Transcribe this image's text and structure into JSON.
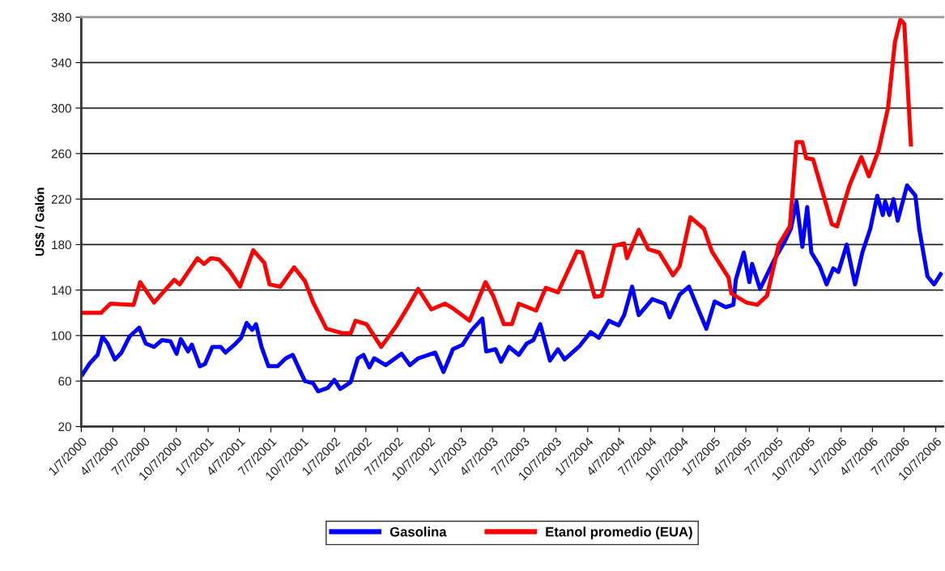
{
  "chart_data": {
    "type": "line",
    "ylabel": "US$ / Galón",
    "ylim": [
      20,
      380
    ],
    "yticks": [
      20,
      60,
      100,
      140,
      180,
      220,
      260,
      300,
      340,
      380
    ],
    "xlim": [
      "2000-01-07",
      "2006-10-28"
    ],
    "xticks": [
      {
        "value": "2000-01-07",
        "label": "1/7/2000"
      },
      {
        "value": "2000-04-07",
        "label": "4/7/2000"
      },
      {
        "value": "2000-07-07",
        "label": "7/7/2000"
      },
      {
        "value": "2000-10-07",
        "label": "10/7/2000"
      },
      {
        "value": "2001-01-07",
        "label": "1/7/2001"
      },
      {
        "value": "2001-04-07",
        "label": "4/7/2001"
      },
      {
        "value": "2001-07-07",
        "label": "7/7/2001"
      },
      {
        "value": "2001-10-07",
        "label": "10/7/2001"
      },
      {
        "value": "2002-01-07",
        "label": "1/7/2002"
      },
      {
        "value": "2002-04-07",
        "label": "4/7/2002"
      },
      {
        "value": "2002-07-07",
        "label": "7/7/2002"
      },
      {
        "value": "2002-10-07",
        "label": "10/7/2002"
      },
      {
        "value": "2003-01-07",
        "label": "1/7/2003"
      },
      {
        "value": "2003-04-07",
        "label": "4/7/2003"
      },
      {
        "value": "2003-07-07",
        "label": "7/7/2003"
      },
      {
        "value": "2003-10-07",
        "label": "10/7/2003"
      },
      {
        "value": "2004-01-07",
        "label": "1/7/2004"
      },
      {
        "value": "2004-04-07",
        "label": "4/7/2004"
      },
      {
        "value": "2004-07-07",
        "label": "7/7/2004"
      },
      {
        "value": "2004-10-07",
        "label": "10/7/2004"
      },
      {
        "value": "2005-01-07",
        "label": "1/7/2005"
      },
      {
        "value": "2005-04-07",
        "label": "4/7/2005"
      },
      {
        "value": "2005-07-07",
        "label": "7/7/2005"
      },
      {
        "value": "2005-10-07",
        "label": "10/7/2005"
      },
      {
        "value": "2006-01-07",
        "label": "1/7/2006"
      },
      {
        "value": "2006-04-07",
        "label": "4/7/2006"
      },
      {
        "value": "2006-07-07",
        "label": "7/7/2006"
      },
      {
        "value": "2006-10-07",
        "label": "10/7/2006"
      }
    ],
    "grid": "y",
    "legend": "bottom",
    "marker": "none",
    "line_style": "solid",
    "series": [
      {
        "name": "Gasolina",
        "color": "#0000ff",
        "x": [
          "2000-01-11",
          "2000-01-30",
          "2000-02-23",
          "2000-03-08",
          "2000-03-23",
          "2000-04-13",
          "2000-05-02",
          "2000-05-25",
          "2000-06-22",
          "2000-07-11",
          "2000-08-04",
          "2000-08-27",
          "2000-09-20",
          "2000-10-08",
          "2000-10-20",
          "2000-11-10",
          "2000-11-21",
          "2000-12-14",
          "2000-12-29",
          "2001-01-19",
          "2001-02-12",
          "2001-02-26",
          "2001-03-24",
          "2001-04-12",
          "2001-04-28",
          "2001-05-14",
          "2001-05-25",
          "2001-06-10",
          "2001-06-30",
          "2001-07-26",
          "2001-08-19",
          "2001-09-08",
          "2001-09-23",
          "2001-10-13",
          "2001-11-06",
          "2001-11-20",
          "2001-12-18",
          "2002-01-06",
          "2002-01-23",
          "2002-02-22",
          "2002-03-15",
          "2002-03-31",
          "2002-04-17",
          "2002-05-01",
          "2002-06-03",
          "2002-07-19",
          "2002-08-12",
          "2002-09-05",
          "2002-10-24",
          "2002-11-17",
          "2002-12-14",
          "2003-01-11",
          "2003-02-07",
          "2003-03-09",
          "2003-03-20",
          "2003-04-16",
          "2003-05-02",
          "2003-05-25",
          "2003-06-22",
          "2003-07-15",
          "2003-08-03",
          "2003-08-23",
          "2003-09-20",
          "2003-10-13",
          "2003-11-01",
          "2003-12-15",
          "2004-01-15",
          "2004-02-08",
          "2004-03-08",
          "2004-04-05",
          "2004-04-21",
          "2004-05-14",
          "2004-06-02",
          "2004-07-11",
          "2004-08-16",
          "2004-08-30",
          "2004-09-28",
          "2004-10-25",
          "2004-11-14",
          "2004-12-14",
          "2005-01-07",
          "2005-02-08",
          "2005-03-02",
          "2005-03-09",
          "2005-04-01",
          "2005-04-17",
          "2005-04-25",
          "2005-05-18",
          "2005-06-11",
          "2005-06-27",
          "2005-07-27",
          "2005-08-15",
          "2005-08-31",
          "2005-09-17",
          "2005-10-01",
          "2005-10-13",
          "2005-11-06",
          "2005-11-26",
          "2005-12-15",
          "2005-12-30",
          "2006-01-23",
          "2006-02-16",
          "2006-03-09",
          "2006-04-01",
          "2006-04-21",
          "2006-05-07",
          "2006-05-14",
          "2006-05-26",
          "2006-06-07",
          "2006-06-19",
          "2006-07-16",
          "2006-08-09",
          "2006-08-20",
          "2006-09-13",
          "2006-10-02",
          "2006-10-21"
        ],
        "values": [
          66,
          75,
          83,
          99,
          93,
          79,
          85,
          99,
          107,
          93,
          90,
          96,
          95,
          84,
          97,
          86,
          92,
          73,
          75,
          90,
          90,
          85,
          92,
          98,
          111,
          105,
          110,
          90,
          73,
          73,
          80,
          83,
          73,
          60,
          58,
          51,
          54,
          61,
          53,
          59,
          80,
          83,
          72,
          80,
          74,
          84,
          74,
          80,
          85,
          68,
          88,
          92,
          105,
          115,
          86,
          88,
          77,
          90,
          83,
          93,
          96,
          110,
          78,
          88,
          79,
          91,
          103,
          98,
          113,
          109,
          118,
          143,
          118,
          132,
          128,
          116,
          136,
          143,
          128,
          106,
          130,
          125,
          127,
          149,
          173,
          147,
          163,
          141,
          156,
          166,
          182,
          194,
          218,
          178,
          213,
          173,
          161,
          145,
          159,
          156,
          180,
          145,
          173,
          194,
          223,
          206,
          218,
          206,
          220,
          201,
          232,
          223,
          194,
          152,
          145,
          154
        ]
      },
      {
        "name": "Etanol promedio (EUA)",
        "color": "#ff0000",
        "x": [
          "2000-01-11",
          "2000-03-04",
          "2000-03-31",
          "2000-06-06",
          "2000-06-25",
          "2000-08-04",
          "2000-08-27",
          "2000-10-01",
          "2000-10-17",
          "2000-12-07",
          "2000-12-26",
          "2001-01-15",
          "2001-02-07",
          "2001-03-09",
          "2001-04-09",
          "2001-05-17",
          "2001-06-18",
          "2001-07-03",
          "2001-08-03",
          "2001-09-12",
          "2001-10-13",
          "2001-11-06",
          "2001-12-14",
          "2002-01-30",
          "2002-02-22",
          "2002-03-08",
          "2002-04-09",
          "2002-05-21",
          "2002-07-03",
          "2002-08-04",
          "2002-09-05",
          "2002-10-13",
          "2002-11-21",
          "2002-12-14",
          "2003-01-31",
          "2003-03-18",
          "2003-04-09",
          "2003-05-10",
          "2003-06-02",
          "2003-06-22",
          "2003-08-11",
          "2003-09-08",
          "2003-10-13",
          "2003-12-07",
          "2003-12-22",
          "2004-01-27",
          "2004-02-16",
          "2004-03-24",
          "2004-04-21",
          "2004-04-29",
          "2004-06-02",
          "2004-06-30",
          "2004-07-31",
          "2004-09-09",
          "2004-09-28",
          "2004-10-29",
          "2004-12-07",
          "2004-12-30",
          "2005-02-16",
          "2005-02-24",
          "2005-04-09",
          "2005-05-10",
          "2005-06-07",
          "2005-07-11",
          "2005-08-12",
          "2005-08-31",
          "2005-09-17",
          "2005-09-28",
          "2005-10-18",
          "2005-12-11",
          "2005-12-26",
          "2006-01-31",
          "2006-03-06",
          "2006-03-28",
          "2006-04-25",
          "2006-05-22",
          "2006-06-11",
          "2006-06-27",
          "2006-07-08",
          "2006-07-27"
        ],
        "values": [
          120,
          120,
          128,
          127,
          147,
          129,
          137,
          149,
          145,
          168,
          163,
          168,
          167,
          157,
          143,
          175,
          164,
          145,
          143,
          160,
          148,
          129,
          106,
          102,
          102,
          113,
          110,
          90,
          108,
          124,
          141,
          123,
          128,
          124,
          113,
          147,
          135,
          110,
          110,
          128,
          122,
          142,
          138,
          174,
          173,
          134,
          135,
          179,
          181,
          168,
          193,
          176,
          173,
          153,
          161,
          204,
          194,
          174,
          151,
          137,
          129,
          127,
          135,
          180,
          196,
          270,
          270,
          256,
          255,
          198,
          196,
          232,
          257,
          240,
          263,
          300,
          358,
          378,
          374,
          268
        ]
      }
    ]
  }
}
